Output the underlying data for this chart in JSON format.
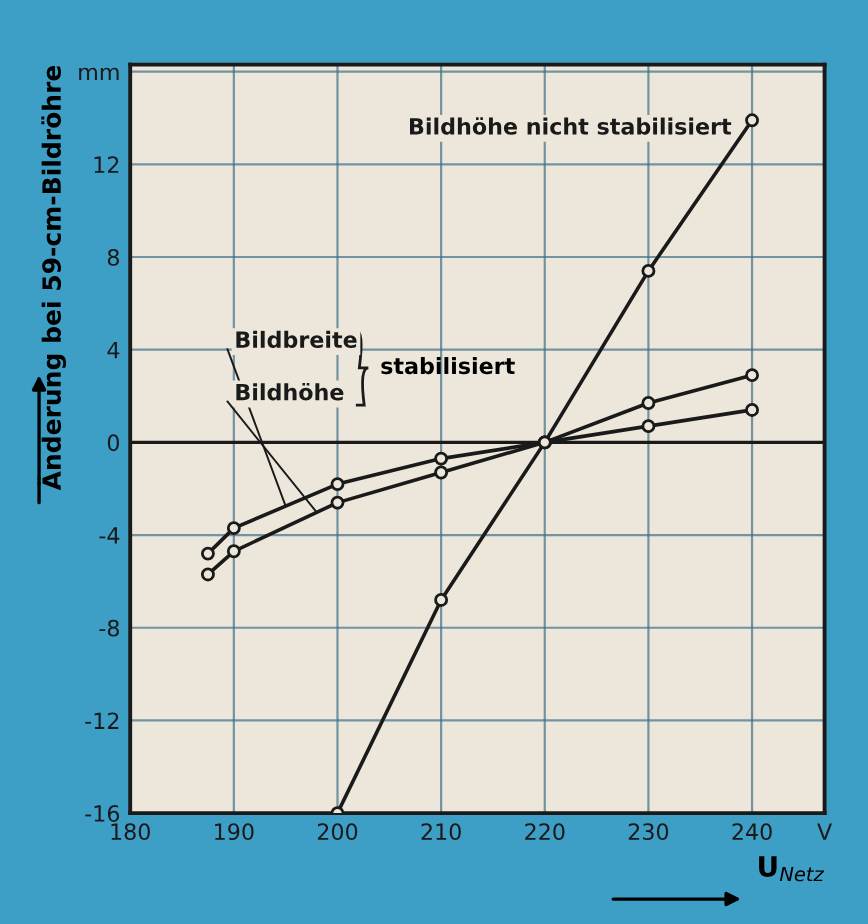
{
  "chart_data": {
    "type": "line",
    "xlabel": "U$_{Netz}$",
    "ylabel": "Änderung bei 59-cm-Bildröhre",
    "xlim": [
      180,
      247
    ],
    "ylim": [
      -16,
      16.3
    ],
    "xticks": [
      180,
      190,
      200,
      210,
      220,
      230,
      240,
      {
        "value": 247,
        "label": "V"
      }
    ],
    "yticks": [
      -16,
      -12,
      -8,
      -4,
      0,
      4,
      8,
      12,
      {
        "value": 16,
        "label": "mm"
      }
    ],
    "grid": true,
    "marker": "circle",
    "line_style": "solid",
    "ref_lines": [
      {
        "axis": "y",
        "value": 0,
        "color": "#1a1a1a"
      }
    ],
    "annotations": [
      "stabilisiert"
    ],
    "series": [
      {
        "name": "Bildhöhe nicht stabilisiert",
        "color": "#1a1a1a",
        "x": [
          200,
          210,
          220,
          230,
          240
        ],
        "values": [
          -16,
          -6.8,
          0,
          7.4,
          13.9
        ]
      },
      {
        "name": "Bildbreite",
        "color": "#1a1a1a",
        "x": [
          187.5,
          190,
          200,
          210,
          220,
          230,
          240
        ],
        "values": [
          -4.8,
          -3.7,
          -1.8,
          -0.7,
          0,
          0.7,
          1.4
        ]
      },
      {
        "name": "Bildhöhe",
        "color": "#1a1a1a",
        "x": [
          187.5,
          190,
          200,
          210,
          220,
          230,
          240
        ],
        "values": [
          -5.7,
          -4.7,
          -2.6,
          -1.3,
          0,
          1.7,
          2.9
        ]
      }
    ]
  }
}
